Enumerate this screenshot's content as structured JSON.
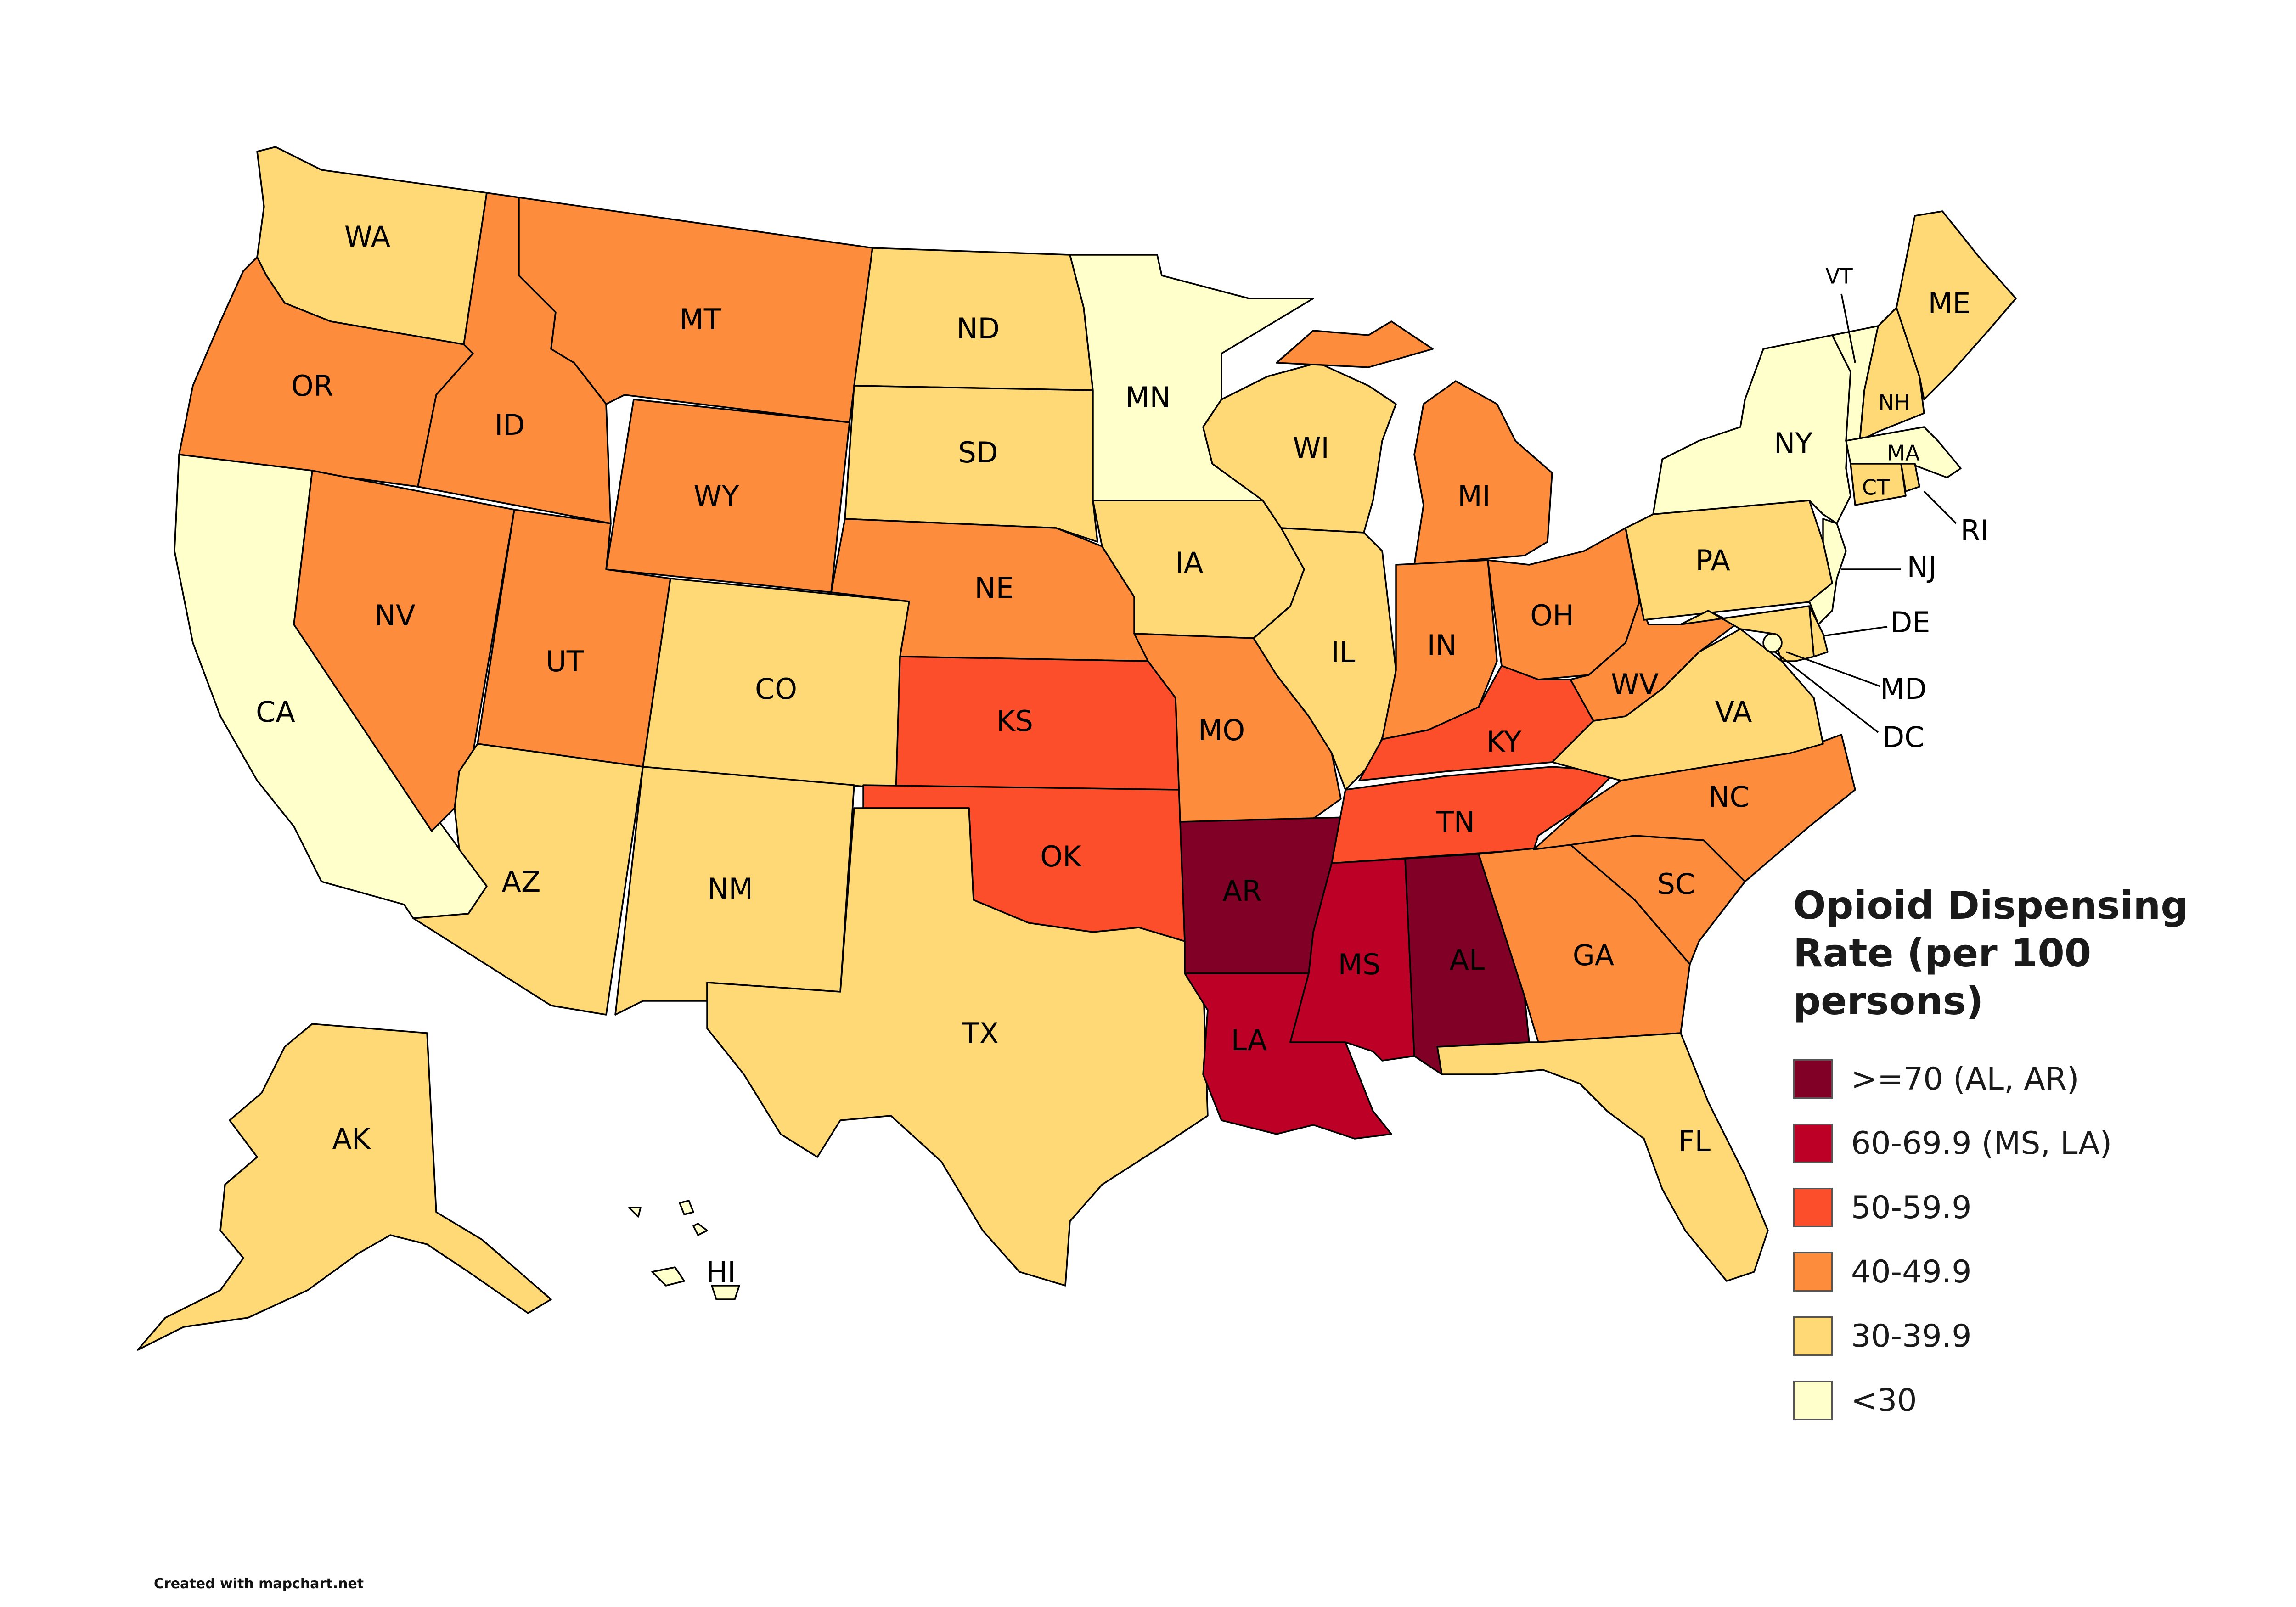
{
  "legend": {
    "title_line1": "Opioid Dispensing",
    "title_line2": "Rate (per 100 persons)",
    "items": [
      {
        "label": ">=70 (AL, AR)",
        "color": "#800026"
      },
      {
        "label": "60-69.9 (MS, LA)",
        "color": "#bd0026"
      },
      {
        "label": "50-59.9",
        "color": "#fc4e2a"
      },
      {
        "label": "40-49.9",
        "color": "#fd8d3c"
      },
      {
        "label": "30-39.9",
        "color": "#fed976"
      },
      {
        "label": "<30",
        "color": "#ffffcc"
      }
    ]
  },
  "states": {
    "WA": {
      "label": "WA",
      "bin": 4
    },
    "OR": {
      "label": "OR",
      "bin": 3
    },
    "CA": {
      "label": "CA",
      "bin": 5
    },
    "ID": {
      "label": "ID",
      "bin": 3
    },
    "NV": {
      "label": "NV",
      "bin": 3
    },
    "MT": {
      "label": "MT",
      "bin": 3
    },
    "WY": {
      "label": "WY",
      "bin": 3
    },
    "UT": {
      "label": "UT",
      "bin": 3
    },
    "AZ": {
      "label": "AZ",
      "bin": 4
    },
    "CO": {
      "label": "CO",
      "bin": 4
    },
    "NM": {
      "label": "NM",
      "bin": 4
    },
    "ND": {
      "label": "ND",
      "bin": 4
    },
    "SD": {
      "label": "SD",
      "bin": 4
    },
    "NE": {
      "label": "NE",
      "bin": 3
    },
    "KS": {
      "label": "KS",
      "bin": 2
    },
    "OK": {
      "label": "OK",
      "bin": 2
    },
    "TX": {
      "label": "TX",
      "bin": 4
    },
    "MN": {
      "label": "MN",
      "bin": 5
    },
    "IA": {
      "label": "IA",
      "bin": 4
    },
    "MO": {
      "label": "MO",
      "bin": 3
    },
    "AR": {
      "label": "AR",
      "bin": 0
    },
    "LA": {
      "label": "LA",
      "bin": 1
    },
    "WI": {
      "label": "WI",
      "bin": 4
    },
    "IL": {
      "label": "IL",
      "bin": 4
    },
    "MI": {
      "label": "MI",
      "bin": 3
    },
    "IN": {
      "label": "IN",
      "bin": 3
    },
    "OH": {
      "label": "OH",
      "bin": 3
    },
    "KY": {
      "label": "KY",
      "bin": 2
    },
    "TN": {
      "label": "TN",
      "bin": 2
    },
    "MS": {
      "label": "MS",
      "bin": 1
    },
    "AL": {
      "label": "AL",
      "bin": 0
    },
    "GA": {
      "label": "GA",
      "bin": 3
    },
    "FL": {
      "label": "FL",
      "bin": 4
    },
    "SC": {
      "label": "SC",
      "bin": 3
    },
    "NC": {
      "label": "NC",
      "bin": 3
    },
    "VA": {
      "label": "VA",
      "bin": 4
    },
    "WV": {
      "label": "WV",
      "bin": 3
    },
    "PA": {
      "label": "PA",
      "bin": 4
    },
    "NY": {
      "label": "NY",
      "bin": 5
    },
    "VT": {
      "label": "VT",
      "bin": 5
    },
    "NH": {
      "label": "NH",
      "bin": 4
    },
    "ME": {
      "label": "ME",
      "bin": 4
    },
    "MA": {
      "label": "MA",
      "bin": 5
    },
    "CT": {
      "label": "CT",
      "bin": 4
    },
    "RI": {
      "label": "RI",
      "bin": 4
    },
    "NJ": {
      "label": "NJ",
      "bin": 5
    },
    "DE": {
      "label": "DE",
      "bin": 4
    },
    "MD": {
      "label": "MD",
      "bin": 4
    },
    "DC": {
      "label": "DC",
      "bin": 5
    },
    "AK": {
      "label": "AK",
      "bin": 4
    },
    "HI": {
      "label": "HI",
      "bin": 5
    }
  },
  "credit": "Created with mapchart.net"
}
